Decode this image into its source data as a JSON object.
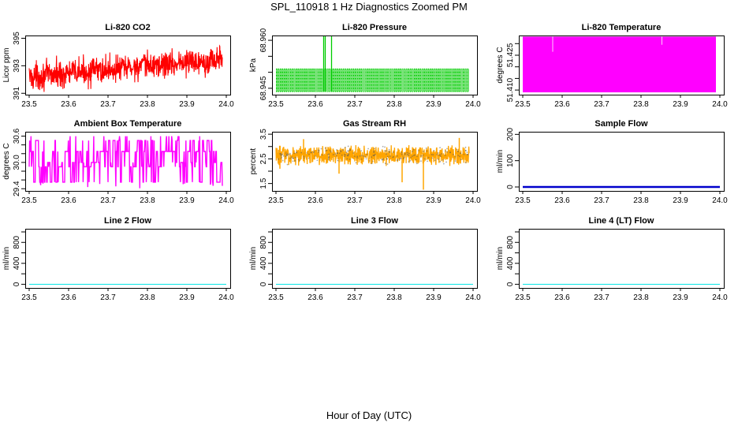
{
  "figure": {
    "title": "SPL_110918  1 Hz Diagnostics Zoomed PM",
    "xlabel": "Hour of Day (UTC)",
    "colors": {
      "axis": "#000000",
      "background": "#ffffff"
    }
  },
  "chart_data": [
    {
      "type": "line",
      "title": "Li-820 CO2",
      "ylabel": "Licor ppm",
      "xlim": [
        23.5,
        24.0
      ],
      "ylim": [
        390.9,
        395.2
      ],
      "xticks": [
        23.5,
        23.6,
        23.7,
        23.8,
        23.9,
        24.0
      ],
      "xtick_labels": [
        "23.5",
        "23.6",
        "23.7",
        "23.8",
        "23.9",
        "24.0"
      ],
      "yticks": [
        391,
        393,
        395
      ],
      "ytick_labels": [
        "391",
        "393",
        "395"
      ],
      "series": [
        {
          "name": "CO2",
          "color": "#ff0000",
          "style": "noise",
          "x_start": 23.5,
          "x_end": 23.99,
          "trend_start": 392.2,
          "trend_end": 393.5,
          "amplitude": 0.85,
          "min": 391.1,
          "max": 395.0
        }
      ]
    },
    {
      "type": "line",
      "title": "Li-820 Pressure",
      "ylabel": "kPa",
      "xlim": [
        23.5,
        24.0
      ],
      "ylim": [
        68.943,
        68.9615
      ],
      "xticks": [
        23.5,
        23.6,
        23.7,
        23.8,
        23.9,
        24.0
      ],
      "xtick_labels": [
        "23.5",
        "23.6",
        "23.7",
        "23.8",
        "23.9",
        "24.0"
      ],
      "yticks": [
        68.945,
        68.95,
        68.955,
        68.96
      ],
      "ytick_labels": [
        "68.945",
        "",
        "",
        "68.960"
      ],
      "series": [
        {
          "name": "Pressure",
          "color": "#00cc00",
          "style": "levels",
          "x_start": 23.5,
          "x_end": 23.99,
          "levels": [
            68.944,
            68.945,
            68.946,
            68.947,
            68.948,
            68.949,
            68.95,
            68.951
          ],
          "spikes": [
            {
              "x": 23.621,
              "y": 68.9615
            },
            {
              "x": 23.625,
              "y": 68.9615
            },
            {
              "x": 23.641,
              "y": 68.9615
            }
          ]
        }
      ]
    },
    {
      "type": "line",
      "title": "Li-820 Temperature",
      "ylabel": "degrees C",
      "xlim": [
        23.5,
        24.0
      ],
      "ylim": [
        51.408,
        51.4335
      ],
      "xticks": [
        23.5,
        23.6,
        23.7,
        23.8,
        23.9,
        24.0
      ],
      "xtick_labels": [
        "23.5",
        "23.6",
        "23.7",
        "23.8",
        "23.9",
        "24.0"
      ],
      "yticks": [
        51.41,
        51.415,
        51.42,
        51.425,
        51.43
      ],
      "ytick_labels": [
        "51.410",
        "",
        "",
        "51.425",
        ""
      ],
      "series": [
        {
          "name": "Temperature",
          "color": "#ff00ff",
          "style": "band",
          "x_start": 23.5,
          "x_end": 23.99,
          "low": 51.409,
          "high": 51.433,
          "dips": [
            {
              "x": 23.576,
              "y": 51.4265
            },
            {
              "x": 23.853,
              "y": 51.4295
            }
          ]
        }
      ]
    },
    {
      "type": "line",
      "title": "Ambient Box Temperature",
      "ylabel": "degrees C",
      "xlim": [
        23.5,
        24.0
      ],
      "ylim": [
        29.35,
        30.7
      ],
      "xticks": [
        23.5,
        23.6,
        23.7,
        23.8,
        23.9,
        24.0
      ],
      "xtick_labels": [
        "23.5",
        "23.6",
        "23.7",
        "23.8",
        "23.9",
        "24.0"
      ],
      "yticks": [
        29.4,
        29.6,
        29.8,
        30.0,
        30.2,
        30.4,
        30.6
      ],
      "ytick_labels": [
        "29.4",
        "",
        "",
        "30.0",
        "",
        "",
        "30.6"
      ],
      "series": [
        {
          "name": "Ambient",
          "color": "#ff00ff",
          "style": "steps",
          "x_start": 23.5,
          "x_end": 23.99,
          "levels": [
            29.55,
            29.9,
            30.0,
            30.25,
            30.5
          ],
          "min": 29.4,
          "max": 30.6
        }
      ]
    },
    {
      "type": "scatter",
      "title": "Gas Stream RH",
      "ylabel": "percent",
      "xlim": [
        23.5,
        24.0
      ],
      "ylim": [
        1.2,
        3.6
      ],
      "xticks": [
        23.5,
        23.6,
        23.7,
        23.8,
        23.9,
        24.0
      ],
      "xtick_labels": [
        "23.5",
        "23.6",
        "23.7",
        "23.8",
        "23.9",
        "24.0"
      ],
      "yticks": [
        1.5,
        2.0,
        2.5,
        3.0,
        3.5
      ],
      "ytick_labels": [
        "1.5",
        "",
        "2.5",
        "",
        "3.5"
      ],
      "series": [
        {
          "name": "RH",
          "color": "#ffa500",
          "edge_color": "#555555",
          "style": "dense",
          "x_start": 23.5,
          "x_end": 23.99,
          "center": 2.65,
          "amplitude": 0.28,
          "outliers": [
            {
              "x": 23.82,
              "y": 1.55
            },
            {
              "x": 23.874,
              "y": 1.25
            },
            {
              "x": 23.66,
              "y": 1.9
            },
            {
              "x": 23.51,
              "y": 2.1
            },
            {
              "x": 23.57,
              "y": 3.3
            },
            {
              "x": 23.965,
              "y": 3.35
            }
          ]
        }
      ]
    },
    {
      "type": "line",
      "title": "Sample Flow",
      "ylabel": "ml/min",
      "xlim": [
        23.5,
        24.0
      ],
      "ylim": [
        -15,
        210
      ],
      "xticks": [
        23.5,
        23.6,
        23.7,
        23.8,
        23.9,
        24.0
      ],
      "xtick_labels": [
        "23.5",
        "23.6",
        "23.7",
        "23.8",
        "23.9",
        "24.0"
      ],
      "yticks": [
        0,
        100,
        200
      ],
      "ytick_labels": [
        "0",
        "100",
        "200"
      ],
      "series": [
        {
          "name": "Sample",
          "color": "#0000cc",
          "style": "flat",
          "width": 2.5,
          "x_start": 23.5,
          "x_end": 24.0,
          "value": 0
        }
      ]
    },
    {
      "type": "line",
      "title": "Line 2 Flow",
      "ylabel": "ml/min",
      "xlim": [
        23.5,
        24.0
      ],
      "ylim": [
        -70,
        1060
      ],
      "xticks": [
        23.5,
        23.6,
        23.7,
        23.8,
        23.9,
        24.0
      ],
      "xtick_labels": [
        "23.5",
        "23.6",
        "23.7",
        "23.8",
        "23.9",
        "24.0"
      ],
      "yticks": [
        0,
        200,
        400,
        600,
        800,
        1000
      ],
      "ytick_labels": [
        "0",
        "",
        "400",
        "",
        "800",
        ""
      ],
      "series": [
        {
          "name": "Line 2",
          "color": "#00e5e5",
          "style": "flat",
          "width": 1,
          "x_start": 23.5,
          "x_end": 24.0,
          "value": 0
        }
      ]
    },
    {
      "type": "line",
      "title": "Line 3 Flow",
      "ylabel": "ml/min",
      "xlim": [
        23.5,
        24.0
      ],
      "ylim": [
        -70,
        1060
      ],
      "xticks": [
        23.5,
        23.6,
        23.7,
        23.8,
        23.9,
        24.0
      ],
      "xtick_labels": [
        "23.5",
        "23.6",
        "23.7",
        "23.8",
        "23.9",
        "24.0"
      ],
      "yticks": [
        0,
        200,
        400,
        600,
        800,
        1000
      ],
      "ytick_labels": [
        "0",
        "",
        "400",
        "",
        "800",
        ""
      ],
      "series": [
        {
          "name": "Line 3",
          "color": "#00e5e5",
          "style": "flat",
          "width": 1,
          "x_start": 23.5,
          "x_end": 24.0,
          "value": 0
        }
      ]
    },
    {
      "type": "line",
      "title": "Line 4 (LT) Flow",
      "ylabel": "ml/min",
      "xlim": [
        23.5,
        24.0
      ],
      "ylim": [
        -70,
        1060
      ],
      "xticks": [
        23.5,
        23.6,
        23.7,
        23.8,
        23.9,
        24.0
      ],
      "xtick_labels": [
        "23.5",
        "23.6",
        "23.7",
        "23.8",
        "23.9",
        "24.0"
      ],
      "yticks": [
        0,
        200,
        400,
        600,
        800,
        1000
      ],
      "ytick_labels": [
        "0",
        "",
        "400",
        "",
        "800",
        ""
      ],
      "series": [
        {
          "name": "Line 4",
          "color": "#00e5e5",
          "style": "flat",
          "width": 1,
          "x_start": 23.5,
          "x_end": 24.0,
          "value": 0
        }
      ]
    }
  ]
}
